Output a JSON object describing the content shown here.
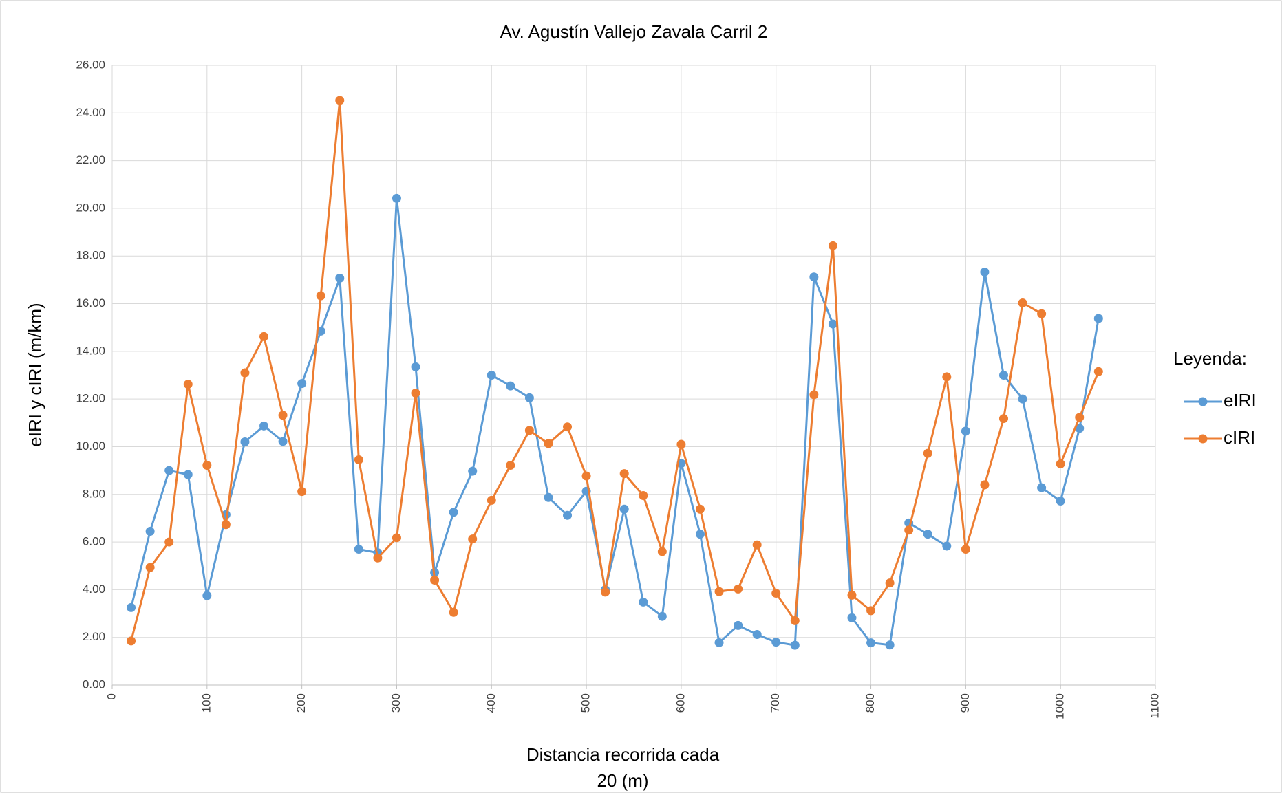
{
  "chart_data": {
    "type": "line",
    "title": "Av. Agustín Vallejo Zavala Carril 2",
    "xlabel": "Distancia recorrida cada 20 (m)",
    "ylabel": "eIRI y cIRI (m/km)",
    "legend_title": "Leyenda:",
    "legend": "right",
    "grid": true,
    "x": [
      20,
      40,
      60,
      80,
      100,
      120,
      140,
      160,
      180,
      200,
      220,
      240,
      260,
      280,
      300,
      320,
      340,
      360,
      380,
      400,
      420,
      440,
      460,
      480,
      500,
      520,
      540,
      560,
      580,
      600,
      620,
      640,
      660,
      680,
      700,
      720,
      740,
      760,
      780,
      800,
      820,
      840,
      860,
      880,
      900,
      920,
      940,
      960,
      980,
      1000,
      1020,
      1040
    ],
    "series": [
      {
        "name": "eIRI",
        "color": "#5b9bd5",
        "values": [
          3.25,
          6.45,
          9.0,
          8.83,
          3.75,
          7.15,
          10.2,
          10.87,
          10.22,
          12.65,
          14.85,
          17.07,
          5.7,
          5.55,
          20.42,
          13.35,
          4.72,
          7.25,
          8.97,
          13.0,
          12.55,
          12.05,
          7.87,
          7.12,
          8.13,
          4.0,
          7.38,
          3.48,
          2.88,
          9.3,
          6.33,
          1.78,
          2.5,
          2.12,
          1.8,
          1.67,
          17.12,
          15.15,
          2.82,
          1.77,
          1.68,
          6.8,
          6.33,
          5.83,
          10.65,
          17.33,
          13.0,
          12.0,
          8.28,
          7.72,
          10.77,
          15.38
        ]
      },
      {
        "name": "cIRI",
        "color": "#ed7d31",
        "values": [
          1.85,
          4.93,
          6.0,
          12.62,
          9.22,
          6.73,
          13.1,
          14.62,
          11.32,
          8.12,
          16.33,
          24.53,
          9.45,
          5.33,
          6.18,
          12.25,
          4.4,
          3.05,
          6.13,
          7.75,
          9.22,
          10.68,
          10.13,
          10.83,
          8.77,
          3.9,
          8.87,
          7.95,
          5.6,
          10.1,
          7.38,
          3.92,
          4.03,
          5.88,
          3.85,
          2.7,
          12.18,
          18.43,
          3.77,
          3.12,
          4.28,
          6.5,
          9.72,
          12.93,
          5.7,
          8.4,
          11.18,
          16.03,
          15.58,
          9.28,
          11.23,
          13.15
        ]
      }
    ],
    "xlim": [
      0,
      1100
    ],
    "xticks": [
      0,
      100,
      200,
      300,
      400,
      500,
      600,
      700,
      800,
      900,
      1000,
      1100
    ],
    "ylim": [
      0,
      26
    ],
    "yticks": [
      {
        "value": 0,
        "label": "0.00"
      },
      {
        "value": 2,
        "label": "2.00"
      },
      {
        "value": 4,
        "label": "4.00"
      },
      {
        "value": 6,
        "label": "6.00"
      },
      {
        "value": 8,
        "label": "8.00"
      },
      {
        "value": 10,
        "label": "10.00"
      },
      {
        "value": 12,
        "label": "12.00"
      },
      {
        "value": 14,
        "label": "14.00"
      },
      {
        "value": 16,
        "label": "16.00"
      },
      {
        "value": 18,
        "label": "18.00"
      },
      {
        "value": 20,
        "label": "20.00"
      },
      {
        "value": 22,
        "label": "22.00"
      },
      {
        "value": 24,
        "label": "24.00"
      },
      {
        "value": 26,
        "label": "26.00"
      }
    ]
  }
}
